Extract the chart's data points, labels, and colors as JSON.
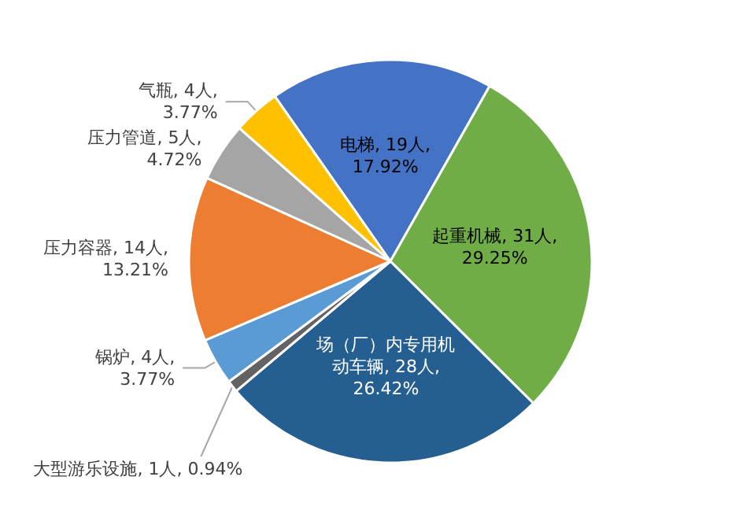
{
  "chart_data": {
    "type": "pie",
    "categories": [
      "电梯",
      "起重机械",
      "场（厂）内专用机动车辆",
      "大型游乐设施",
      "锅炉",
      "压力容器",
      "压力管道",
      "气瓶"
    ],
    "values": [
      19,
      31,
      28,
      1,
      4,
      14,
      5,
      4
    ],
    "value_labels": [
      "19人, 17.92%",
      "31人, 29.25%",
      "28人, 26.42%",
      "1人, 0.94%",
      "4人, 3.77%",
      "14人, 13.21%",
      "5人, 4.72%",
      "4人, 3.77%"
    ],
    "colors": [
      "#4472c4",
      "#70ad47",
      "#255e91",
      "#636363",
      "#5b9bd5",
      "#ed7d31",
      "#a5a5a5",
      "#ffc000"
    ],
    "legend": false
  }
}
